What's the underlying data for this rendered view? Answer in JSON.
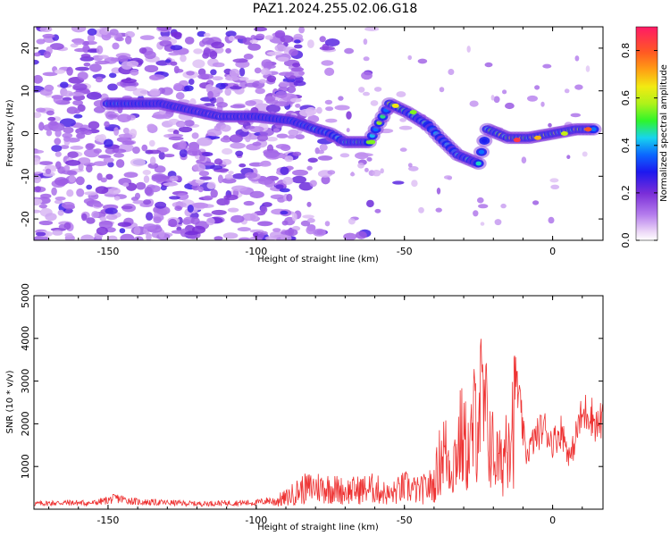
{
  "title": "PAZ1.2024.255.02.06.G18",
  "chart_data": [
    {
      "type": "heatmap",
      "xlabel": "Height of straight line (km)",
      "ylabel": "Frequency (Hz)",
      "xlim": [
        -175,
        17
      ],
      "ylim": [
        -25,
        25
      ],
      "xticks": [
        -150,
        -100,
        -50,
        0
      ],
      "yticks": [
        -20,
        -10,
        0,
        10,
        20
      ],
      "colorbar": {
        "label": "Normalized spectral amplitude",
        "range": [
          0.0,
          0.9
        ],
        "ticks": [
          0.0,
          0.2,
          0.4,
          0.6,
          0.8
        ]
      },
      "ridge": [
        {
          "x": -150,
          "y": 7,
          "amp": 0.45
        },
        {
          "x": -132,
          "y": 7,
          "amp": 0.3
        },
        {
          "x": -112,
          "y": 4,
          "amp": 0.2
        },
        {
          "x": -100,
          "y": 4,
          "amp": 0.3
        },
        {
          "x": -88,
          "y": 3,
          "amp": 0.35
        },
        {
          "x": -80,
          "y": 1,
          "amp": 0.45
        },
        {
          "x": -75,
          "y": 0,
          "amp": 0.4
        },
        {
          "x": -70,
          "y": -2,
          "amp": 0.5
        },
        {
          "x": -62,
          "y": -2,
          "amp": 0.55
        },
        {
          "x": -55,
          "y": 7,
          "amp": 0.6
        },
        {
          "x": -49,
          "y": 5,
          "amp": 0.5
        },
        {
          "x": -42,
          "y": 2,
          "amp": 0.45
        },
        {
          "x": -38,
          "y": -1,
          "amp": 0.4
        },
        {
          "x": -32,
          "y": -5,
          "amp": 0.45
        },
        {
          "x": -25,
          "y": -7,
          "amp": 0.45
        },
        {
          "x": -22,
          "y": 1,
          "amp": 0.5
        },
        {
          "x": -15,
          "y": -1,
          "amp": 0.7
        },
        {
          "x": -8,
          "y": -1,
          "amp": 0.65
        },
        {
          "x": 0,
          "y": 0,
          "amp": 0.6
        },
        {
          "x": 8,
          "y": 1,
          "amp": 0.7
        },
        {
          "x": 15,
          "y": 1,
          "amp": 0.6
        }
      ]
    },
    {
      "type": "line",
      "xlabel": "Height of straight line (km)",
      "ylabel": "SNR (10 * v/v)",
      "xlim": [
        -175,
        17
      ],
      "ylim": [
        0,
        5000
      ],
      "xticks": [
        -150,
        -100,
        -50,
        0
      ],
      "yticks": [
        1000,
        2000,
        3000,
        4000,
        5000
      ],
      "color": "#ee3333",
      "series": [
        {
          "x": [
            -175,
            -165,
            -155,
            -150,
            -147,
            -140,
            -130,
            -120,
            -110,
            -100,
            -95,
            -90,
            -85,
            -80,
            -75,
            -70,
            -65,
            -60,
            -55,
            -50,
            -45,
            -40,
            -37,
            -34,
            -31,
            -28,
            -25,
            -22,
            -20,
            -17,
            -15,
            -12,
            -9,
            -6,
            -3,
            0,
            3,
            6,
            9,
            12,
            15,
            17
          ],
          "y": [
            150,
            180,
            170,
            250,
            300,
            200,
            180,
            150,
            170,
            180,
            250,
            400,
            700,
            800,
            750,
            650,
            700,
            750,
            500,
            800,
            650,
            900,
            2200,
            1500,
            2600,
            2000,
            4000,
            3000,
            2000,
            1500,
            3300,
            3000,
            1300,
            1700,
            2000,
            1600,
            1900,
            1200,
            2100,
            2400,
            2000,
            2200
          ]
        }
      ]
    }
  ]
}
